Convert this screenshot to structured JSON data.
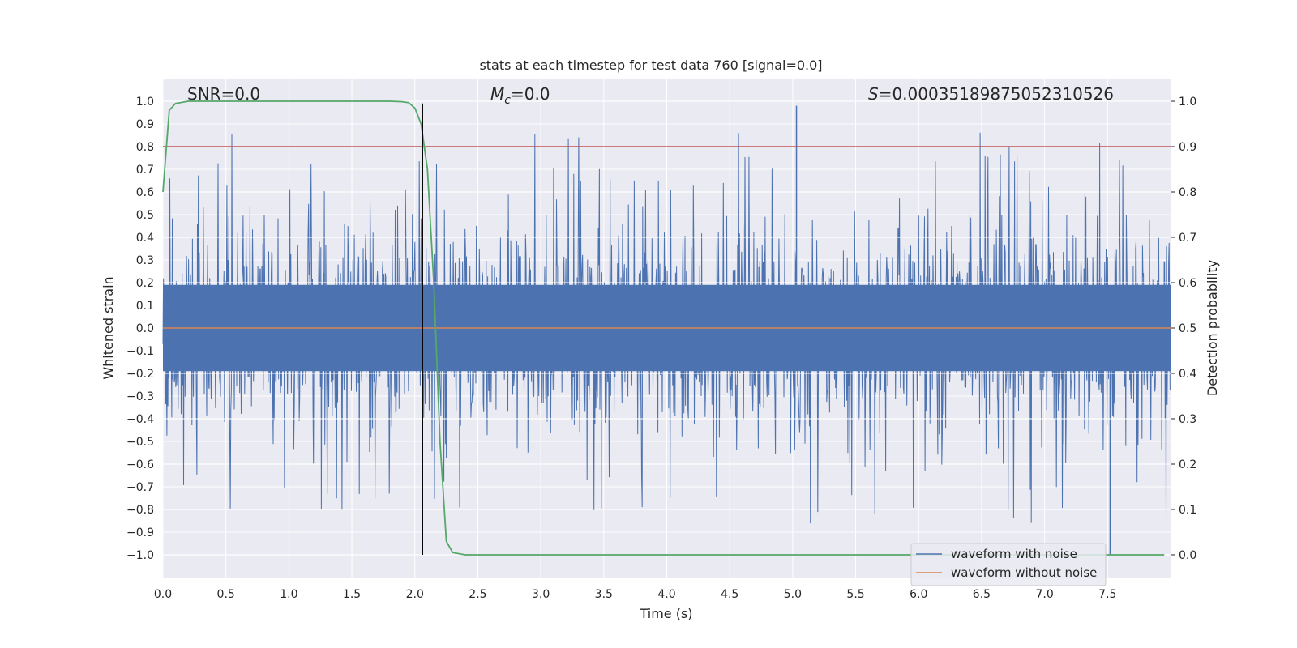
{
  "chart_data": {
    "type": "line",
    "title": "stats at each timestep for test data 760 [signal=0.0]",
    "xlabel": "Time (s)",
    "ylabel": "Whitened strain",
    "ylabel_right": "Detection probability",
    "xlim": [
      0.0,
      8.0
    ],
    "ylim": [
      -1.1,
      1.1
    ],
    "ylim_right": [
      -0.05,
      1.05
    ],
    "x_ticks": [
      0.0,
      0.5,
      1.0,
      1.5,
      2.0,
      2.5,
      3.0,
      3.5,
      4.0,
      4.5,
      5.0,
      5.5,
      6.0,
      6.5,
      7.0,
      7.5
    ],
    "x_tick_labels": [
      "0.0",
      "0.5",
      "1.0",
      "1.5",
      "2.0",
      "2.5",
      "3.0",
      "3.5",
      "4.0",
      "4.5",
      "5.0",
      "5.5",
      "6.0",
      "6.5",
      "7.0",
      "7.5"
    ],
    "y_ticks": [
      1.0,
      0.9,
      0.8,
      0.7,
      0.6,
      0.5,
      0.4,
      0.3,
      0.2,
      0.1,
      0.0,
      -0.1,
      -0.2,
      -0.3,
      -0.4,
      -0.5,
      -0.6,
      -0.7,
      -0.8,
      -0.9,
      -1.0
    ],
    "y_tick_labels": [
      "1.0",
      "0.9",
      "0.8",
      "0.7",
      "0.6",
      "0.5",
      "0.4",
      "0.3",
      "0.2",
      "0.1",
      "0.0",
      "−0.1",
      "−0.2",
      "−0.3",
      "−0.4",
      "−0.5",
      "−0.6",
      "−0.7",
      "−0.8",
      "−0.9",
      "−1.0"
    ],
    "y_right_ticks": [
      1.0,
      0.9,
      0.8,
      0.7,
      0.6,
      0.5,
      0.4,
      0.3,
      0.2,
      0.1,
      0.0
    ],
    "y_right_tick_labels": [
      "1.0",
      "0.9",
      "0.8",
      "0.7",
      "0.6",
      "0.5",
      "0.4",
      "0.3",
      "0.2",
      "0.1",
      "0.0"
    ],
    "annotations": {
      "snr": "SNR=0.0",
      "mc_symbol": "M",
      "mc_sub": "c",
      "mc_value": "=0.0",
      "s_symbol": "S",
      "s_value": "=0.00035189875052310526"
    },
    "legend": {
      "placement": "lower right",
      "entries": [
        "waveform with noise",
        "waveform without noise"
      ]
    },
    "noise_series": {
      "name": "waveform with noise",
      "color": "#4c72b0",
      "duration_s": 8.0,
      "samples": 2048,
      "core_amplitude": 0.19,
      "max_peak": 0.98,
      "min_peak": -1.0,
      "seed": 760
    },
    "clean_series": {
      "name": "waveform without noise",
      "color": "#dd8452",
      "constant_value": 0.0
    },
    "detection_probability": {
      "name": "detection probability",
      "color": "#55a868",
      "x": [
        0.0,
        0.05,
        0.1,
        0.2,
        0.5,
        1.0,
        1.5,
        1.8,
        1.9,
        1.95,
        2.0,
        2.05,
        2.1,
        2.15,
        2.2,
        2.25,
        2.3,
        2.4,
        3.0,
        5.0,
        7.95
      ],
      "y": [
        0.8,
        0.98,
        0.995,
        1.0,
        1.0,
        1.0,
        1.0,
        1.0,
        0.999,
        0.997,
        0.985,
        0.95,
        0.85,
        0.6,
        0.25,
        0.03,
        0.005,
        0.0,
        0.0,
        0.0,
        0.0
      ]
    },
    "threshold": {
      "value_right_axis": 0.9,
      "color": "#c44e52"
    },
    "marker_line": {
      "x": 2.06,
      "y_range": [
        -1.0,
        0.99
      ],
      "color": "#000000"
    }
  }
}
